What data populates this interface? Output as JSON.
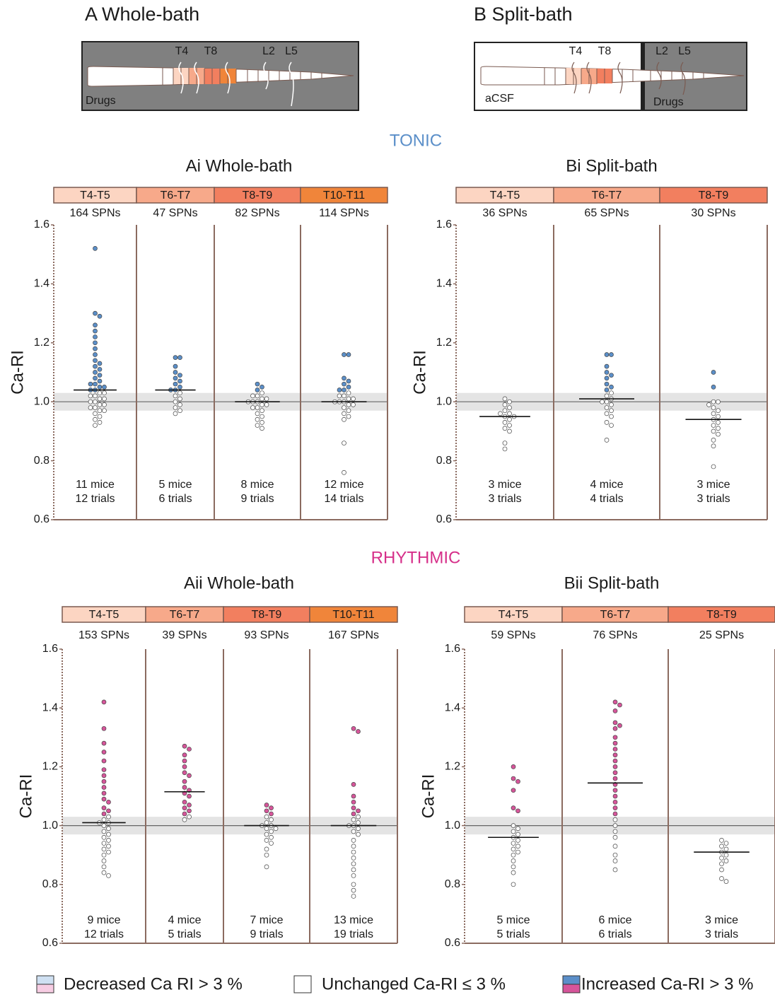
{
  "panels": [
    {
      "label": "A Whole-bath",
      "roots": [
        "T4",
        "T8",
        "L2",
        "L5"
      ],
      "bath_labels": [
        "Drugs"
      ]
    },
    {
      "label": "B Split-bath",
      "roots": [
        "T4",
        "T8",
        "L2",
        "L5"
      ],
      "bath_labels": [
        "aCSF",
        "Drugs"
      ]
    }
  ],
  "sections": [
    {
      "label": "TONIC",
      "color": "#5b8fc9"
    },
    {
      "label": "RHYTHMIC",
      "color": "#d6308a"
    }
  ],
  "chart_data": [
    {
      "type": "beeswarm",
      "title": "Ai  Whole-bath",
      "ylabel": "Ca-RI",
      "ylim": [
        0.6,
        1.6
      ],
      "yticks": [
        0.6,
        0.8,
        {
          "value": 1,
          "label": "1.0"
        },
        1.2,
        1.4,
        1.6
      ],
      "band": [
        0.97,
        1.03
      ],
      "reference": 1,
      "colors": {
        "increased": "#5b8fc9",
        "unchanged": "#ffffff",
        "decreased": "#ffffff"
      },
      "groups": [
        {
          "segment": "T4-T5",
          "color": "#fcd5c2",
          "n_label": "164 SPNs",
          "mice": "11 mice",
          "trials": "12 trials",
          "mean": 1.04,
          "values": [
            1.52,
            1.3,
            1.29,
            1.26,
            1.24,
            1.22,
            1.2,
            1.18,
            1.16,
            1.14,
            1.13,
            1.12,
            1.11,
            1.1,
            1.09,
            1.08,
            1.07,
            1.06,
            1.06,
            1.05,
            1.05,
            1.04,
            1.04,
            1.03,
            1.03,
            1.02,
            1.02,
            1.01,
            1.01,
            1.0,
            1.0,
            0.99,
            0.99,
            0.98,
            0.98,
            0.97,
            0.97,
            0.96,
            0.95,
            0.94,
            0.93,
            0.92
          ]
        },
        {
          "segment": "T6-T7",
          "color": "#f7a98a",
          "n_label": "47 SPNs",
          "mice": "5 mice",
          "trials": "6 trials",
          "mean": 1.04,
          "values": [
            1.15,
            1.15,
            1.12,
            1.1,
            1.09,
            1.08,
            1.07,
            1.06,
            1.05,
            1.04,
            1.04,
            1.03,
            1.02,
            1.01,
            1.0,
            0.99,
            0.98,
            0.97,
            0.96
          ]
        },
        {
          "segment": "T8-T9",
          "color": "#f27f5f",
          "n_label": "82 SPNs",
          "mice": "8 mice",
          "trials": "9 trials",
          "mean": 1.0,
          "values": [
            1.06,
            1.05,
            1.04,
            1.03,
            1.02,
            1.02,
            1.01,
            1.01,
            1.0,
            1.0,
            1.0,
            0.99,
            0.99,
            0.98,
            0.98,
            0.97,
            0.96,
            0.95,
            0.94,
            0.93,
            0.92,
            0.91
          ]
        },
        {
          "segment": "T10-T11",
          "color": "#f0853a",
          "n_label": "114 SPNs",
          "mice": "12 mice",
          "trials": "14 trials",
          "mean": 1.0,
          "values": [
            1.16,
            1.16,
            1.08,
            1.07,
            1.06,
            1.05,
            1.04,
            1.04,
            1.03,
            1.02,
            1.02,
            1.01,
            1.01,
            1.0,
            1.0,
            1.0,
            0.99,
            0.99,
            0.98,
            0.97,
            0.96,
            0.95,
            0.94,
            0.86,
            0.76
          ]
        }
      ]
    },
    {
      "type": "beeswarm",
      "title": "Bi Split-bath",
      "ylabel": "Ca-RI",
      "ylim": [
        0.6,
        1.6
      ],
      "yticks": [
        0.6,
        0.8,
        {
          "value": 1,
          "label": "1.0"
        },
        1.2,
        1.4,
        1.6
      ],
      "band": [
        0.97,
        1.03
      ],
      "reference": 1,
      "colors": {
        "increased": "#5b8fc9",
        "unchanged": "#ffffff",
        "decreased": "#ffffff"
      },
      "groups": [
        {
          "segment": "T4-T5",
          "color": "#fcd5c2",
          "n_label": "36 SPNs",
          "mice": "3 mice",
          "trials": "3 trials",
          "mean": 0.95,
          "values": [
            1.01,
            1.0,
            0.99,
            0.98,
            0.97,
            0.96,
            0.96,
            0.95,
            0.95,
            0.94,
            0.93,
            0.92,
            0.91,
            0.9,
            0.86,
            0.84
          ]
        },
        {
          "segment": "T6-T7",
          "color": "#f7a98a",
          "n_label": "65 SPNs",
          "mice": "4 mice",
          "trials": "4 trials",
          "mean": 1.01,
          "values": [
            1.16,
            1.16,
            1.12,
            1.1,
            1.09,
            1.08,
            1.06,
            1.05,
            1.04,
            1.03,
            1.02,
            1.01,
            1.0,
            1.0,
            0.99,
            0.98,
            0.97,
            0.96,
            0.95,
            0.93,
            0.92,
            0.87
          ]
        },
        {
          "segment": "T8-T9",
          "color": "#f27f5f",
          "n_label": "30 SPNs",
          "mice": "3 mice",
          "trials": "3 trials",
          "mean": 0.94,
          "values": [
            1.1,
            1.05,
            1.0,
            1.0,
            0.99,
            0.98,
            0.97,
            0.96,
            0.95,
            0.94,
            0.93,
            0.92,
            0.91,
            0.9,
            0.89,
            0.87,
            0.85,
            0.78
          ]
        }
      ]
    },
    {
      "type": "beeswarm",
      "title": "Aii Whole-bath",
      "ylabel": "Ca-RI",
      "ylim": [
        0.6,
        1.6
      ],
      "yticks": [
        0.6,
        0.8,
        {
          "value": 1,
          "label": "1.0"
        },
        1.2,
        1.4,
        1.6
      ],
      "band": [
        0.97,
        1.03
      ],
      "reference": 1,
      "colors": {
        "increased": "#d6559a",
        "unchanged": "#ffffff",
        "decreased": "#ffffff"
      },
      "groups": [
        {
          "segment": "T4-T5",
          "color": "#fcd5c2",
          "n_label": "153 SPNs",
          "mice": "9 mice",
          "trials": "12 trials",
          "mean": 1.01,
          "values": [
            1.42,
            1.33,
            1.28,
            1.25,
            1.22,
            1.19,
            1.17,
            1.15,
            1.13,
            1.11,
            1.09,
            1.08,
            1.06,
            1.05,
            1.04,
            1.03,
            1.02,
            1.01,
            1.01,
            1.0,
            0.99,
            0.98,
            0.97,
            0.96,
            0.95,
            0.94,
            0.93,
            0.92,
            0.91,
            0.9,
            0.88,
            0.86,
            0.84,
            0.83
          ]
        },
        {
          "segment": "T6-T7",
          "color": "#f7a98a",
          "n_label": "39 SPNs",
          "mice": "4 mice",
          "trials": "5 trials",
          "mean": 1.115,
          "values": [
            1.27,
            1.26,
            1.24,
            1.22,
            1.2,
            1.18,
            1.17,
            1.15,
            1.13,
            1.12,
            1.11,
            1.1,
            1.08,
            1.07,
            1.06,
            1.05,
            1.04,
            1.03,
            1.02
          ]
        },
        {
          "segment": "T8-T9",
          "color": "#f27f5f",
          "n_label": "93 SPNs",
          "mice": "7 mice",
          "trials": "9 trials",
          "mean": 1.0,
          "values": [
            1.07,
            1.06,
            1.05,
            1.04,
            1.03,
            1.02,
            1.01,
            1.0,
            1.0,
            0.99,
            0.99,
            0.98,
            0.97,
            0.96,
            0.95,
            0.94,
            0.92,
            0.9,
            0.86
          ]
        },
        {
          "segment": "T10-T11",
          "color": "#f0853a",
          "n_label": "167 SPNs",
          "mice": "13 mice",
          "trials": "19 trials",
          "mean": 1.0,
          "values": [
            1.33,
            1.32,
            1.14,
            1.1,
            1.08,
            1.06,
            1.05,
            1.04,
            1.03,
            1.02,
            1.01,
            1.0,
            1.0,
            0.99,
            0.98,
            0.97,
            0.95,
            0.93,
            0.91,
            0.89,
            0.87,
            0.85,
            0.83,
            0.8,
            0.78,
            0.76
          ]
        }
      ]
    },
    {
      "type": "beeswarm",
      "title": "Bii Split-bath",
      "ylabel": "Ca-RI",
      "ylim": [
        0.6,
        1.6
      ],
      "yticks": [
        0.6,
        0.8,
        {
          "value": 1,
          "label": "1.0"
        },
        1.2,
        1.4,
        1.6
      ],
      "band": [
        0.97,
        1.03
      ],
      "reference": 1,
      "colors": {
        "increased": "#d6559a",
        "unchanged": "#ffffff",
        "decreased": "#ffffff"
      },
      "groups": [
        {
          "segment": "T4-T5",
          "color": "#fcd5c2",
          "n_label": "59 SPNs",
          "mice": "5 mice",
          "trials": "5 trials",
          "mean": 0.96,
          "values": [
            1.2,
            1.16,
            1.15,
            1.12,
            1.06,
            1.05,
            1.0,
            0.99,
            0.98,
            0.97,
            0.96,
            0.95,
            0.94,
            0.93,
            0.92,
            0.91,
            0.9,
            0.88,
            0.86,
            0.84,
            0.8
          ]
        },
        {
          "segment": "T6-T7",
          "color": "#f7a98a",
          "n_label": "76 SPNs",
          "mice": "6 mice",
          "trials": "6 trials",
          "mean": 1.145,
          "values": [
            1.42,
            1.41,
            1.39,
            1.35,
            1.34,
            1.33,
            1.3,
            1.28,
            1.26,
            1.24,
            1.22,
            1.2,
            1.18,
            1.16,
            1.14,
            1.12,
            1.1,
            1.08,
            1.06,
            1.04,
            1.02,
            1.0,
            0.98,
            0.96,
            0.93,
            0.9,
            0.88,
            0.85
          ]
        },
        {
          "segment": "T8-T9",
          "color": "#f27f5f",
          "n_label": "25 SPNs",
          "mice": "3 mice",
          "trials": "3 trials",
          "mean": 0.91,
          "values": [
            0.95,
            0.94,
            0.93,
            0.92,
            0.91,
            0.9,
            0.89,
            0.88,
            0.87,
            0.85,
            0.82,
            0.81
          ]
        }
      ]
    }
  ],
  "legend": [
    {
      "label": "Decreased Ca RI > 3 %",
      "colors": [
        "#cfe0f2",
        "#f7cde3"
      ]
    },
    {
      "label": "Unchanged Ca-RI ≤ 3 %",
      "colors": [
        "#ffffff"
      ]
    },
    {
      "label": "Increased Ca-RI > 3 %",
      "colors": [
        "#5b8fc9",
        "#d6559a"
      ]
    }
  ]
}
